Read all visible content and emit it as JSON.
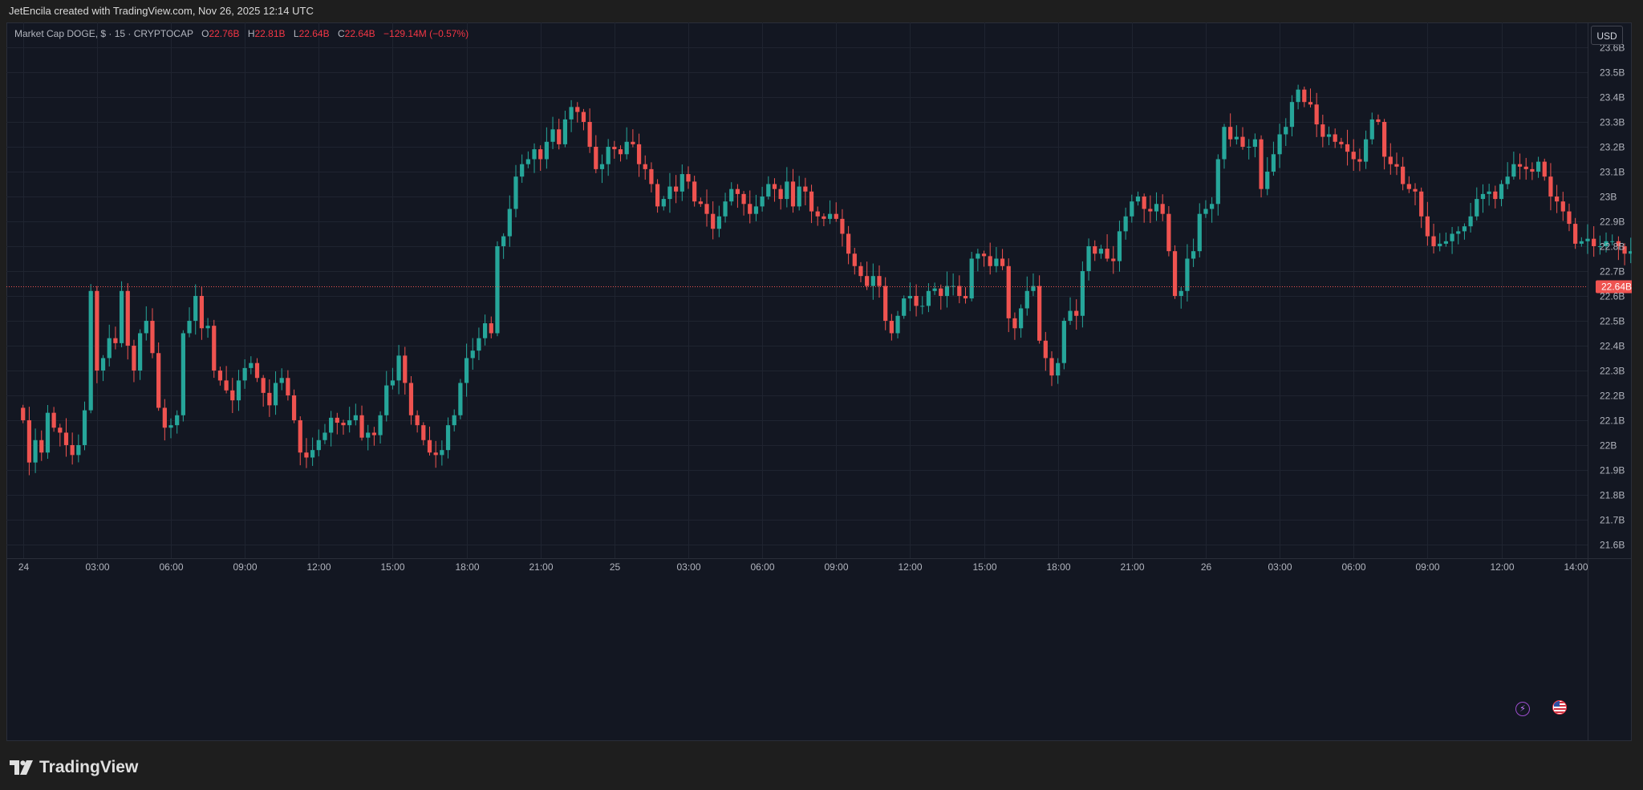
{
  "header": {
    "credit": "JetEncila created with TradingView.com, Nov 26, 2025 12:14 UTC"
  },
  "legend": {
    "symbol": "Market Cap DOGE, $ · 15 · CRYPTOCAP",
    "open_label": "O",
    "open": "22.76B",
    "high_label": "H",
    "high": "22.81B",
    "low_label": "L",
    "low": "22.64B",
    "close_label": "C",
    "close": "22.64B",
    "change": "−129.14M (−0.57%)"
  },
  "currency": "USD",
  "brand": "TradingView",
  "colors": {
    "up": "#26a69a",
    "down": "#ef5350",
    "background": "#131722",
    "grid": "#1f2430",
    "price_line": "#ef5350"
  },
  "icons": [
    "lightning-icon",
    "us-flag-icon",
    "tradingview-logo-icon"
  ],
  "chart_data": {
    "type": "candlestick",
    "interval": "15",
    "ylim": [
      21.545,
      23.7
    ],
    "y_ticks": [
      21.6,
      21.7,
      21.8,
      21.9,
      22.0,
      22.1,
      22.2,
      22.3,
      22.4,
      22.5,
      22.6,
      22.7,
      22.8,
      22.9,
      23.0,
      23.1,
      23.2,
      23.3,
      23.4,
      23.5,
      23.6
    ],
    "y_tick_labels": [
      "21.6B",
      "21.7B",
      "21.8B",
      "21.9B",
      "22B",
      "22.1B",
      "22.2B",
      "22.3B",
      "22.4B",
      "22.5B",
      "22.6B",
      "22.7B",
      "22.8B",
      "22.9B",
      "23B",
      "23.1B",
      "23.2B",
      "23.3B",
      "23.4B",
      "23.5B",
      "23.6B"
    ],
    "x_ticks": [
      0,
      12,
      24,
      36,
      48,
      60,
      72,
      84,
      96,
      108,
      120,
      132,
      144,
      156,
      168,
      180,
      192,
      204,
      216,
      228,
      240,
      252
    ],
    "x_tick_labels": [
      "24",
      "03:00",
      "06:00",
      "09:00",
      "12:00",
      "15:00",
      "18:00",
      "21:00",
      "25",
      "03:00",
      "06:00",
      "09:00",
      "12:00",
      "15:00",
      "18:00",
      "21:00",
      "26",
      "03:00",
      "06:00",
      "09:00",
      "12:00",
      "14:00"
    ],
    "xlim": [
      -2.7,
      254
    ],
    "last_price": 22.64,
    "last_price_label": "22.64B",
    "closes": [
      22.1,
      21.93,
      22.02,
      21.97,
      22.13,
      22.07,
      22.05,
      22.0,
      21.96,
      22.0,
      22.14,
      22.62,
      22.3,
      22.35,
      22.43,
      22.41,
      22.62,
      22.4,
      22.3,
      22.45,
      22.5,
      22.37,
      22.15,
      22.07,
      22.08,
      22.12,
      22.45,
      22.5,
      22.6,
      22.47,
      22.48,
      22.3,
      22.26,
      22.22,
      22.18,
      22.26,
      22.31,
      22.33,
      22.27,
      22.21,
      22.16,
      22.25,
      22.27,
      22.2,
      22.1,
      21.97,
      21.95,
      21.98,
      22.02,
      22.05,
      22.11,
      22.09,
      22.08,
      22.1,
      22.12,
      22.03,
      22.05,
      22.04,
      22.12,
      22.24,
      22.26,
      22.36,
      22.25,
      22.12,
      22.08,
      22.02,
      21.97,
      21.96,
      21.98,
      22.08,
      22.12,
      22.25,
      22.35,
      22.38,
      22.43,
      22.49,
      22.45,
      22.8,
      22.84,
      22.95,
      23.08,
      23.13,
      23.15,
      23.19,
      23.15,
      23.22,
      23.27,
      23.21,
      23.31,
      23.36,
      23.34,
      23.3,
      23.2,
      23.11,
      23.13,
      23.2,
      23.19,
      23.17,
      23.22,
      23.21,
      23.13,
      23.11,
      23.05,
      22.96,
      22.99,
      23.04,
      23.02,
      23.09,
      23.06,
      22.98,
      22.97,
      22.93,
      22.87,
      22.92,
      22.98,
      23.03,
      23.01,
      22.97,
      22.93,
      22.96,
      23.0,
      23.05,
      23.03,
      22.99,
      23.06,
      22.96,
      23.04,
      23.02,
      22.94,
      22.92,
      22.91,
      22.93,
      22.91,
      22.85,
      22.77,
      22.72,
      22.68,
      22.64,
      22.68,
      22.64,
      22.5,
      22.45,
      22.52,
      22.59,
      22.6,
      22.56,
      22.56,
      22.62,
      22.63,
      22.6,
      22.64,
      22.64,
      22.6,
      22.59,
      22.75,
      22.77,
      22.76,
      22.72,
      22.75,
      22.72,
      22.51,
      22.47,
      22.55,
      22.62,
      22.64,
      22.42,
      22.35,
      22.28,
      22.33,
      22.5,
      22.54,
      22.52,
      22.7,
      22.8,
      22.77,
      22.79,
      22.75,
      22.74,
      22.86,
      22.92,
      22.98,
      23.0,
      22.95,
      22.94,
      22.97,
      22.93,
      22.78,
      22.6,
      22.62,
      22.75,
      22.78,
      22.93,
      22.95,
      22.97,
      23.15,
      23.28,
      23.23,
      23.24,
      23.2,
      23.2,
      23.23,
      23.03,
      23.1,
      23.17,
      23.25,
      23.28,
      23.38,
      23.43,
      23.38,
      23.37,
      23.29,
      23.24,
      23.25,
      23.22,
      23.21,
      23.18,
      23.15,
      23.14,
      23.23,
      23.31,
      23.3,
      23.16,
      23.13,
      23.12,
      23.05,
      23.03,
      23.02,
      22.92,
      22.84,
      22.8,
      22.81,
      22.82,
      22.85,
      22.86,
      22.88,
      22.92,
      22.99,
      23.01,
      23.02,
      22.99,
      23.05,
      23.08,
      23.13,
      23.12,
      23.11,
      23.1,
      23.14,
      23.08,
      23.0,
      22.98,
      22.94,
      22.89,
      22.81,
      22.82,
      22.83,
      22.8,
      22.8,
      22.82,
      22.82,
      22.8,
      22.77,
      22.78,
      22.78,
      22.77,
      22.76,
      22.64
    ]
  }
}
